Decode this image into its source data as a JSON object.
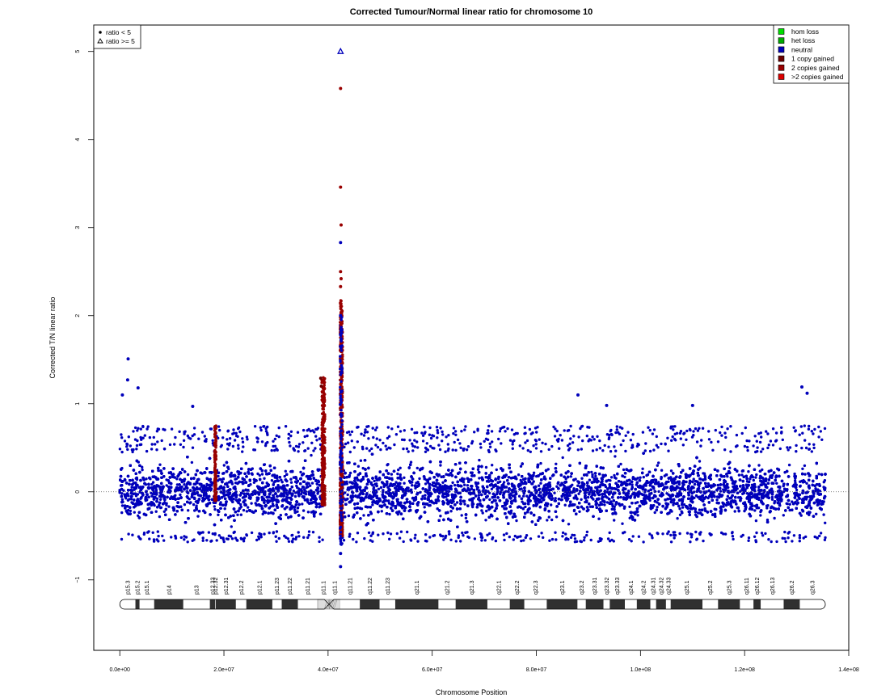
{
  "chart_data": {
    "type": "scatter",
    "title": "Corrected Tumour/Normal linear ratio for chromosome  10",
    "xlabel": "Chromosome Position",
    "ylabel": "Corrected T/N linear ratio",
    "xlim": [
      -5000000,
      140000000
    ],
    "ylim": [
      -1.8,
      5.3
    ],
    "x_ticks": [
      0,
      20000000,
      40000000,
      60000000,
      80000000,
      100000000,
      120000000,
      140000000
    ],
    "x_tick_labels": [
      "0.0e+00",
      "2.0e+07",
      "4.0e+07",
      "6.0e+07",
      "8.0e+07",
      "1.0e+08",
      "1.2e+08",
      "1.4e+08"
    ],
    "y_ticks": [
      -1,
      0,
      1,
      2,
      3,
      4,
      5
    ],
    "y_tick_labels": [
      "−1",
      "0",
      "1",
      "2",
      "3",
      "4",
      "5"
    ],
    "reference_line": {
      "y": 0,
      "style": "dotted"
    },
    "chromosome_length": 135500000,
    "colors": {
      "hom_loss": "#00dd00",
      "het_loss": "#00aa00",
      "neutral": "#0000bb",
      "one_copy": "#6b0000",
      "two_copies": "#990000",
      "more_copies": "#dd0000",
      "acen": "#dddddd"
    },
    "legend_left": {
      "position": "top-left",
      "entries": [
        {
          "symbol": "circle",
          "label": "ratio < 5"
        },
        {
          "symbol": "triangle",
          "label": "ratio >= 5"
        }
      ]
    },
    "legend_right": {
      "position": "top-right",
      "entries": [
        {
          "label": "hom loss",
          "color": "#00dd00"
        },
        {
          "label": "het loss",
          "color": "#00aa00"
        },
        {
          "label": "neutral",
          "color": "#0000bb"
        },
        {
          "label": "1 copy gained",
          "color": "#6b0000"
        },
        {
          "label": "2 copies gained",
          "color": "#990000"
        },
        {
          "label": ">2 copies gained",
          "color": "#dd0000"
        }
      ]
    },
    "neutral_band": {
      "y_min": -0.45,
      "y_max": 0.45
    },
    "gained_regions": [
      {
        "x_start": 18200000,
        "x_end": 18500000,
        "y_min": -0.1,
        "y_max": 0.75
      },
      {
        "x_start": 38800000,
        "x_end": 39400000,
        "y_min": -0.15,
        "y_max": 1.3
      },
      {
        "x_start": 42300000,
        "x_end": 42800000,
        "y_min": -0.5,
        "y_max": 2.2
      }
    ],
    "notable_points": [
      {
        "x": 42400000,
        "y": 5.0,
        "marker": "triangle",
        "color": "neutral"
      },
      {
        "x": 42400000,
        "y": 4.58,
        "color": "two_copies"
      },
      {
        "x": 42400000,
        "y": 3.46,
        "color": "two_copies"
      },
      {
        "x": 42500000,
        "y": 3.03,
        "color": "two_copies"
      },
      {
        "x": 42400000,
        "y": 2.83,
        "color": "neutral"
      },
      {
        "x": 42400000,
        "y": 2.5,
        "color": "two_copies"
      },
      {
        "x": 42500000,
        "y": 2.42,
        "color": "two_copies"
      },
      {
        "x": 42400000,
        "y": 2.33,
        "color": "two_copies"
      },
      {
        "x": 42400000,
        "y": 2.0,
        "color": "neutral"
      },
      {
        "x": 42450000,
        "y": 1.9,
        "color": "two_copies"
      },
      {
        "x": 42400000,
        "y": 1.65,
        "color": "neutral"
      },
      {
        "x": 42400000,
        "y": -0.7,
        "color": "neutral"
      },
      {
        "x": 42400000,
        "y": -0.85,
        "color": "neutral"
      },
      {
        "x": 1600000,
        "y": 1.51,
        "color": "neutral"
      },
      {
        "x": 1500000,
        "y": 1.27,
        "color": "neutral"
      },
      {
        "x": 3500000,
        "y": 1.18,
        "color": "neutral"
      },
      {
        "x": 500000,
        "y": 1.1,
        "color": "neutral"
      },
      {
        "x": 14000000,
        "y": 0.97,
        "color": "neutral"
      },
      {
        "x": 88000000,
        "y": 1.1,
        "color": "neutral"
      },
      {
        "x": 93500000,
        "y": 0.98,
        "color": "neutral"
      },
      {
        "x": 110000000,
        "y": 0.98,
        "color": "neutral"
      },
      {
        "x": 131000000,
        "y": 1.19,
        "color": "neutral"
      },
      {
        "x": 132000000,
        "y": 1.12,
        "color": "neutral"
      },
      {
        "x": 38600000,
        "y": 1.29,
        "color": "one_copy"
      },
      {
        "x": 38700000,
        "y": 1.2,
        "color": "one_copy"
      },
      {
        "x": 18300000,
        "y": 0.74,
        "color": "two_copies"
      }
    ],
    "bands": [
      {
        "name": "p15.3",
        "start": 0,
        "end": 3000000,
        "stain": "gneg"
      },
      {
        "name": "p15.2",
        "start": 3000000,
        "end": 3800000,
        "stain": "gpos"
      },
      {
        "name": "p15.1",
        "start": 3800000,
        "end": 6600000,
        "stain": "gneg"
      },
      {
        "name": "p14",
        "start": 6600000,
        "end": 12200000,
        "stain": "gpos"
      },
      {
        "name": "p13",
        "start": 12200000,
        "end": 17300000,
        "stain": "gneg"
      },
      {
        "name": "p12.33",
        "start": 17300000,
        "end": 18300000,
        "stain": "gpos"
      },
      {
        "name": "p12.32",
        "start": 18300000,
        "end": 18400000,
        "stain": "gneg"
      },
      {
        "name": "p12.31",
        "start": 18400000,
        "end": 22300000,
        "stain": "gpos"
      },
      {
        "name": "p12.2",
        "start": 22300000,
        "end": 24300000,
        "stain": "gneg"
      },
      {
        "name": "p12.1",
        "start": 24300000,
        "end": 29300000,
        "stain": "gpos"
      },
      {
        "name": "p11.23",
        "start": 29300000,
        "end": 31100000,
        "stain": "gneg"
      },
      {
        "name": "p11.22",
        "start": 31100000,
        "end": 34200000,
        "stain": "gpos"
      },
      {
        "name": "p11.21",
        "start": 34200000,
        "end": 38000000,
        "stain": "gneg"
      },
      {
        "name": "p11.1",
        "start": 38000000,
        "end": 40200000,
        "stain": "acen"
      },
      {
        "name": "q11.1",
        "start": 40200000,
        "end": 42300000,
        "stain": "acen"
      },
      {
        "name": "q11.21",
        "start": 42300000,
        "end": 46100000,
        "stain": "gneg"
      },
      {
        "name": "q11.22",
        "start": 46100000,
        "end": 49900000,
        "stain": "gpos"
      },
      {
        "name": "q11.23",
        "start": 49900000,
        "end": 52900000,
        "stain": "gneg"
      },
      {
        "name": "q21.1",
        "start": 52900000,
        "end": 61200000,
        "stain": "gpos"
      },
      {
        "name": "q21.2",
        "start": 61200000,
        "end": 64500000,
        "stain": "gneg"
      },
      {
        "name": "q21.3",
        "start": 64500000,
        "end": 70600000,
        "stain": "gpos"
      },
      {
        "name": "q22.1",
        "start": 70600000,
        "end": 74900000,
        "stain": "gneg"
      },
      {
        "name": "q22.2",
        "start": 74900000,
        "end": 77700000,
        "stain": "gpos"
      },
      {
        "name": "q22.3",
        "start": 77700000,
        "end": 82000000,
        "stain": "gneg"
      },
      {
        "name": "q23.1",
        "start": 82000000,
        "end": 87900000,
        "stain": "gpos"
      },
      {
        "name": "q23.2",
        "start": 87900000,
        "end": 89500000,
        "stain": "gneg"
      },
      {
        "name": "q23.31",
        "start": 89500000,
        "end": 92900000,
        "stain": "gpos"
      },
      {
        "name": "q23.32",
        "start": 92900000,
        "end": 94100000,
        "stain": "gneg"
      },
      {
        "name": "q23.33",
        "start": 94100000,
        "end": 97000000,
        "stain": "gpos"
      },
      {
        "name": "q24.1",
        "start": 97000000,
        "end": 99300000,
        "stain": "gneg"
      },
      {
        "name": "q24.2",
        "start": 99300000,
        "end": 101900000,
        "stain": "gpos"
      },
      {
        "name": "q24.31",
        "start": 101900000,
        "end": 103000000,
        "stain": "gneg"
      },
      {
        "name": "q24.32",
        "start": 103000000,
        "end": 104900000,
        "stain": "gpos"
      },
      {
        "name": "q24.33",
        "start": 104900000,
        "end": 105800000,
        "stain": "gneg"
      },
      {
        "name": "q25.1",
        "start": 105800000,
        "end": 111900000,
        "stain": "gpos"
      },
      {
        "name": "q25.2",
        "start": 111900000,
        "end": 114900000,
        "stain": "gneg"
      },
      {
        "name": "q25.3",
        "start": 114900000,
        "end": 119100000,
        "stain": "gpos"
      },
      {
        "name": "q26.11",
        "start": 119100000,
        "end": 121700000,
        "stain": "gneg"
      },
      {
        "name": "q26.12",
        "start": 121700000,
        "end": 123100000,
        "stain": "gpos"
      },
      {
        "name": "q26.13",
        "start": 123100000,
        "end": 127500000,
        "stain": "gneg"
      },
      {
        "name": "q26.2",
        "start": 127500000,
        "end": 130600000,
        "stain": "gpos"
      },
      {
        "name": "q26.3",
        "start": 130600000,
        "end": 135500000,
        "stain": "gneg"
      }
    ]
  }
}
